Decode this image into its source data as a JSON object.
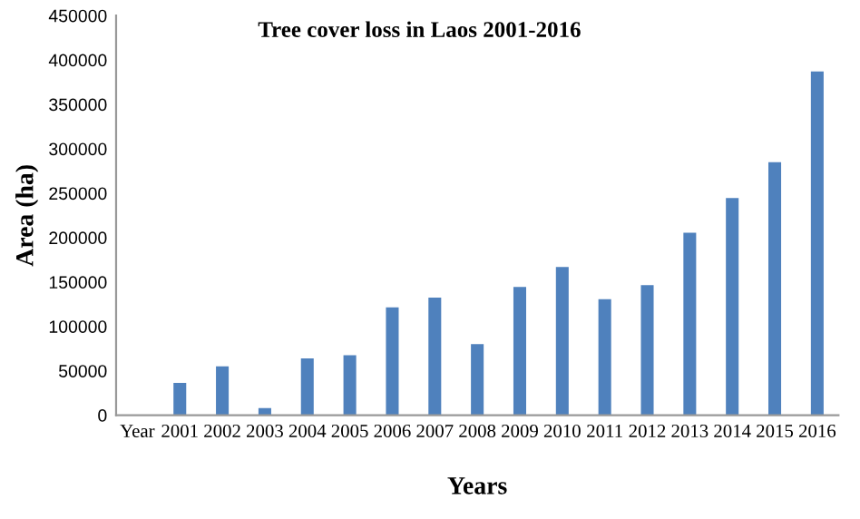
{
  "chart_data": {
    "type": "bar",
    "title": "Tree cover loss in Laos 2001-2016",
    "xlabel": "Years",
    "ylabel": "Area (ha)",
    "categories": [
      "Year",
      "2001",
      "2002",
      "2003",
      "2004",
      "2005",
      "2006",
      "2007",
      "2008",
      "2009",
      "2010",
      "2011",
      "2012",
      "2013",
      "2014",
      "2015",
      "2016"
    ],
    "values": [
      null,
      36500,
      55000,
      8000,
      64000,
      67500,
      121500,
      132500,
      80000,
      144500,
      167000,
      130500,
      146500,
      205500,
      244500,
      285000,
      387000
    ],
    "color": "#4f81bd",
    "ylim": [
      0,
      450000
    ],
    "yticks": [
      0,
      50000,
      100000,
      150000,
      200000,
      250000,
      300000,
      350000,
      400000,
      450000
    ],
    "grid": false,
    "legend": false
  }
}
